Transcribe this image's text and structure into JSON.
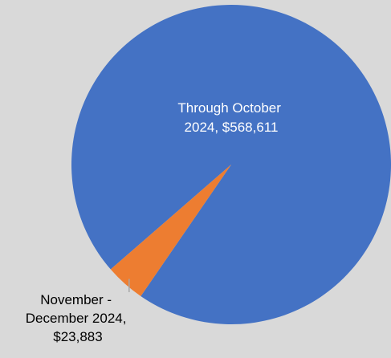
{
  "chart_data": {
    "type": "pie",
    "title": "",
    "slices": [
      {
        "label_lines": [
          "Through October",
          "2024,  $568,611"
        ],
        "value": 568611,
        "color": "#4472c4"
      },
      {
        "label_lines": [
          "November -",
          "December 2024,",
          "$23,883"
        ],
        "value": 23883,
        "color": "#ed7d31"
      }
    ],
    "legend": "none",
    "background": "#d9d9d9"
  }
}
